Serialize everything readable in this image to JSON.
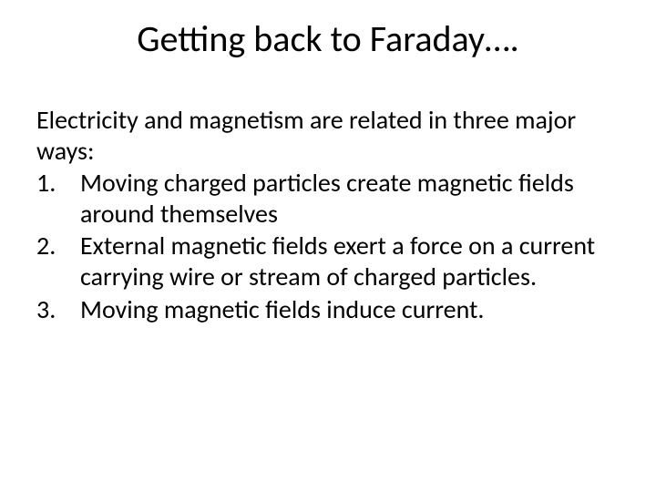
{
  "slide": {
    "title": "Getting back to  Faraday….",
    "intro": "Electricity and magnetism are related in three major ways:",
    "points": [
      "Moving charged particles create magnetic fields around themselves",
      "External magnetic fields exert a force on a current carrying wire or stream of charged particles.",
      "Moving magnetic fields induce current."
    ],
    "colors": {
      "background": "#ffffff",
      "text": "#000000"
    },
    "typography": {
      "title_fontsize_pt": 40,
      "body_fontsize_pt": 28,
      "font_family": "Calibri"
    }
  }
}
